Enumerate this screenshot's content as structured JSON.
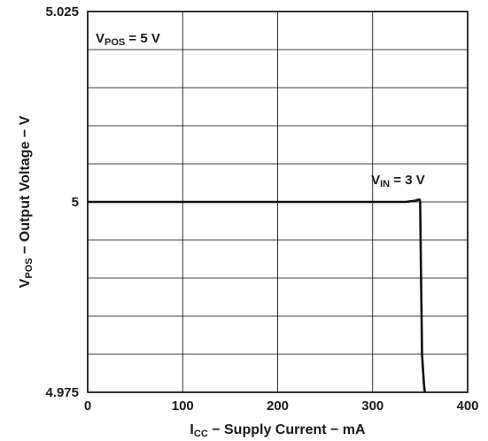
{
  "chart_data": {
    "type": "line",
    "xlabel": {
      "main": "I",
      "sub": "CC",
      "rest": " − Supply Current − mA"
    },
    "ylabel": {
      "main": "V",
      "sub": "POS",
      "rest": " − Output Voltage − V"
    },
    "xlim": [
      0,
      400
    ],
    "ylim": [
      4.975,
      5.025
    ],
    "x_ticks": [
      0,
      100,
      200,
      300,
      400
    ],
    "y_ticks": [
      4.975,
      5,
      5.025
    ],
    "x_tick_labels": [
      "0",
      "100",
      "200",
      "300",
      "400"
    ],
    "y_tick_labels": [
      "4.975",
      "5",
      "5.025"
    ],
    "x_gridlines": [
      0,
      100,
      200,
      300,
      400
    ],
    "y_gridlines": [
      4.975,
      4.98,
      4.985,
      4.99,
      4.995,
      5,
      5.005,
      5.01,
      5.015,
      5.02,
      5.025
    ],
    "grid": true,
    "annotations": [
      {
        "id": "vpos",
        "main": "V",
        "sub": "POS",
        "rest": " = 5 V"
      },
      {
        "id": "vin",
        "main": "V",
        "sub": "IN",
        "rest": " = 3 V"
      }
    ],
    "series": [
      {
        "x": [
          0,
          50,
          100,
          150,
          200,
          250,
          300,
          335,
          342,
          346,
          348,
          349.5,
          350,
          350.5,
          351,
          351.5,
          352,
          353,
          354,
          355
        ],
        "y": [
          5.0,
          5.0,
          5.0,
          5.0,
          5.0,
          5.0,
          5.0,
          5.0,
          5.0001,
          5.0002,
          5.0003,
          5.0003,
          5.0,
          4.995,
          4.99,
          4.985,
          4.98,
          4.978,
          4.976,
          4.975
        ]
      }
    ]
  }
}
